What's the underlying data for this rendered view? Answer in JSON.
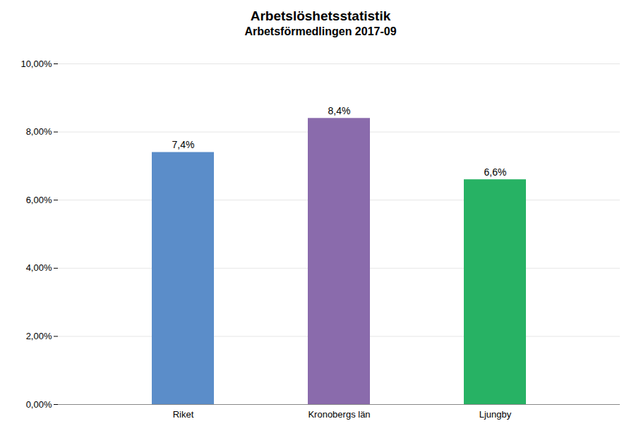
{
  "chart_data": {
    "type": "bar",
    "title": "Arbetslöshetsstatistik",
    "subtitle": "Arbetsförmedlingen  2017-09",
    "categories": [
      "Riket",
      "Kronobergs län",
      "Ljungby"
    ],
    "values": [
      0.074,
      0.084,
      0.066
    ],
    "value_labels": [
      "7,4%",
      "8,4%",
      "6,6%"
    ],
    "colors": [
      "#5b8dc9",
      "#8a6bac",
      "#27b264"
    ],
    "ylim": [
      0,
      0.1
    ],
    "yticks": [
      {
        "value": 0,
        "label": "0,00%"
      },
      {
        "value": 0.02,
        "label": "2,00%"
      },
      {
        "value": 0.04,
        "label": "4,00%"
      },
      {
        "value": 0.06,
        "label": "6,00%"
      },
      {
        "value": 0.08,
        "label": "8,00%"
      },
      {
        "value": 0.1,
        "label": "10,00%"
      }
    ],
    "grid": true,
    "data_labels": true
  }
}
